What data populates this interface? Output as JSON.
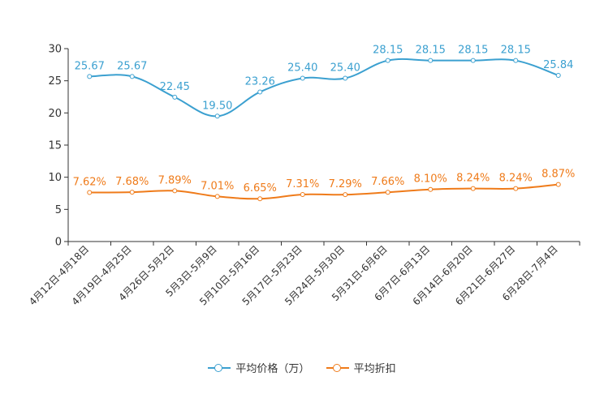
{
  "chart_data": {
    "type": "line",
    "categories": [
      "4月12日-4月18日",
      "4月19日-4月25日",
      "4月26日-5月2日",
      "5月3日-5月9日",
      "5月10日-5月16日",
      "5月17日-5月23日",
      "5月24日-5月30日",
      "5月31日-6月6日",
      "6月7日-6月13日",
      "6月14日-6月20日",
      "6月21日-6月27日",
      "6月28日-7月4日"
    ],
    "yaxis": {
      "min": 0,
      "max": 30,
      "ticks": [
        0,
        5,
        10,
        15,
        20,
        25,
        30
      ]
    },
    "series": [
      {
        "name": "平均价格（万）",
        "color": "#3ba0d0",
        "values": [
          25.67,
          25.67,
          22.45,
          19.5,
          23.26,
          25.4,
          25.4,
          28.15,
          28.15,
          28.15,
          28.15,
          25.84
        ],
        "labels": [
          "25.67",
          "25.67",
          "22.45",
          "19.50",
          "23.26",
          "25.40",
          "25.40",
          "28.15",
          "28.15",
          "28.15",
          "28.15",
          "25.84"
        ]
      },
      {
        "name": "平均折扣",
        "color": "#ef7b1a",
        "values": [
          7.62,
          7.68,
          7.89,
          7.01,
          6.65,
          7.31,
          7.29,
          7.66,
          8.1,
          8.24,
          8.24,
          8.87
        ],
        "labels": [
          "7.62%",
          "7.68%",
          "7.89%",
          "7.01%",
          "6.65%",
          "7.31%",
          "7.29%",
          "7.66%",
          "8.10%",
          "8.24%",
          "8.24%",
          "8.87%"
        ]
      }
    ]
  }
}
